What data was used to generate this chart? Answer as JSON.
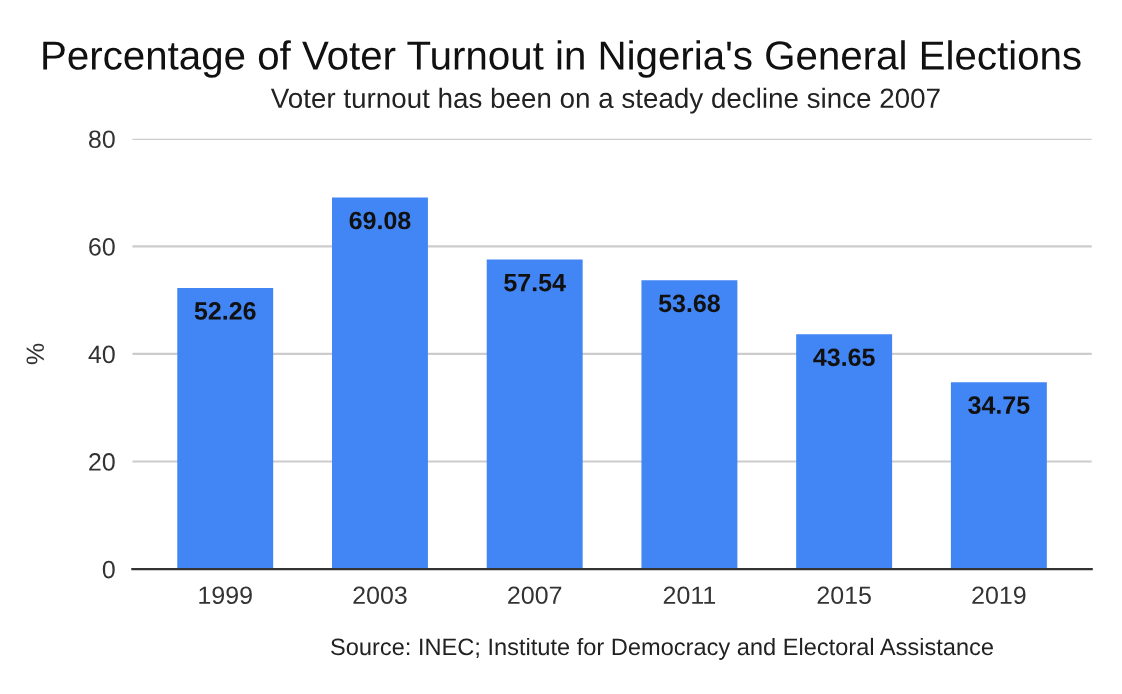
{
  "chart_data": {
    "type": "bar",
    "title": "Percentage of Voter Turnout in Nigeria's General Elections",
    "subtitle": "Voter turnout has been on a steady decline since 2007",
    "ylabel": "%",
    "categories": [
      "1999",
      "2003",
      "2007",
      "2011",
      "2015",
      "2019"
    ],
    "values": [
      52.26,
      69.08,
      57.54,
      53.68,
      43.65,
      34.75
    ],
    "color": "#4285f4",
    "ylim": [
      0,
      80
    ],
    "yticks": [
      0,
      20,
      40,
      60,
      80
    ],
    "grid": "y",
    "data_labels": true,
    "annotations": [
      "Source: INEC; Institute for Democracy and Electoral Assistance"
    ]
  }
}
